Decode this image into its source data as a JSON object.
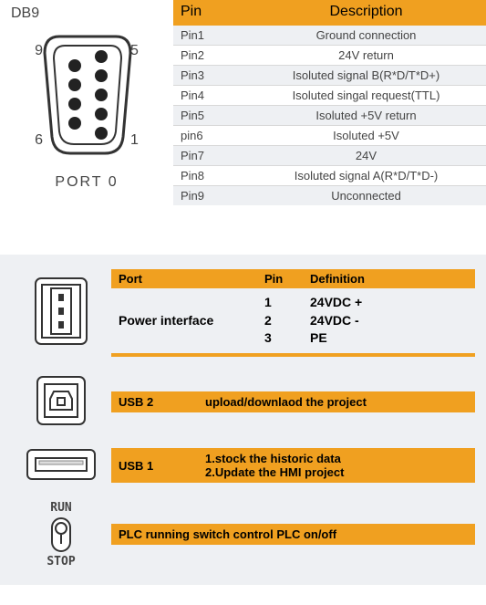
{
  "section1": {
    "connector_label": "DB9",
    "port_label": "PORT 0",
    "side_numbers": {
      "tl": "9",
      "tr": "5",
      "bl": "6",
      "br": "1"
    },
    "headers": {
      "pin": "Pin",
      "desc": "Description"
    },
    "rows": [
      {
        "pin": "Pin1",
        "desc": "Ground connection",
        "alt": true
      },
      {
        "pin": "Pin2",
        "desc": "24V return",
        "alt": false
      },
      {
        "pin": "Pin3",
        "desc": "Isoluted signal B(R*D/T*D+)",
        "alt": true
      },
      {
        "pin": "Pin4",
        "desc": "Isoluted singal request(TTL)",
        "alt": false
      },
      {
        "pin": "Pin5",
        "desc": "Isoluted +5V return",
        "alt": true
      },
      {
        "pin": "pin6",
        "desc": "Isoluted +5V",
        "alt": false
      },
      {
        "pin": "Pin7",
        "desc": "24V",
        "alt": true
      },
      {
        "pin": "Pin8",
        "desc": "Isoluted signal A(R*D/T*D-)",
        "alt": false
      },
      {
        "pin": "Pin9",
        "desc": "Unconnected",
        "alt": true
      }
    ]
  },
  "section2": {
    "power": {
      "headers": {
        "port": "Port",
        "pin": "Pin",
        "def": "Definition"
      },
      "label": "Power interface",
      "pins": [
        "1",
        "2",
        "3"
      ],
      "defs": [
        "24VDC +",
        "24VDC -",
        "PE"
      ]
    },
    "usb2": {
      "label": "USB 2",
      "desc": "upload/downlaod the project"
    },
    "usb1": {
      "label": "USB 1",
      "line1": "1.stock the historic data",
      "line2": "2.Update the HMI project"
    },
    "switch": {
      "run": "RUN",
      "stop": "STOP",
      "desc": "PLC running switch  control PLC on/off"
    }
  },
  "colors": {
    "accent": "#f0a020",
    "alt_row": "#eef0f3",
    "text": "#444444",
    "border": "#d8d8d8"
  }
}
